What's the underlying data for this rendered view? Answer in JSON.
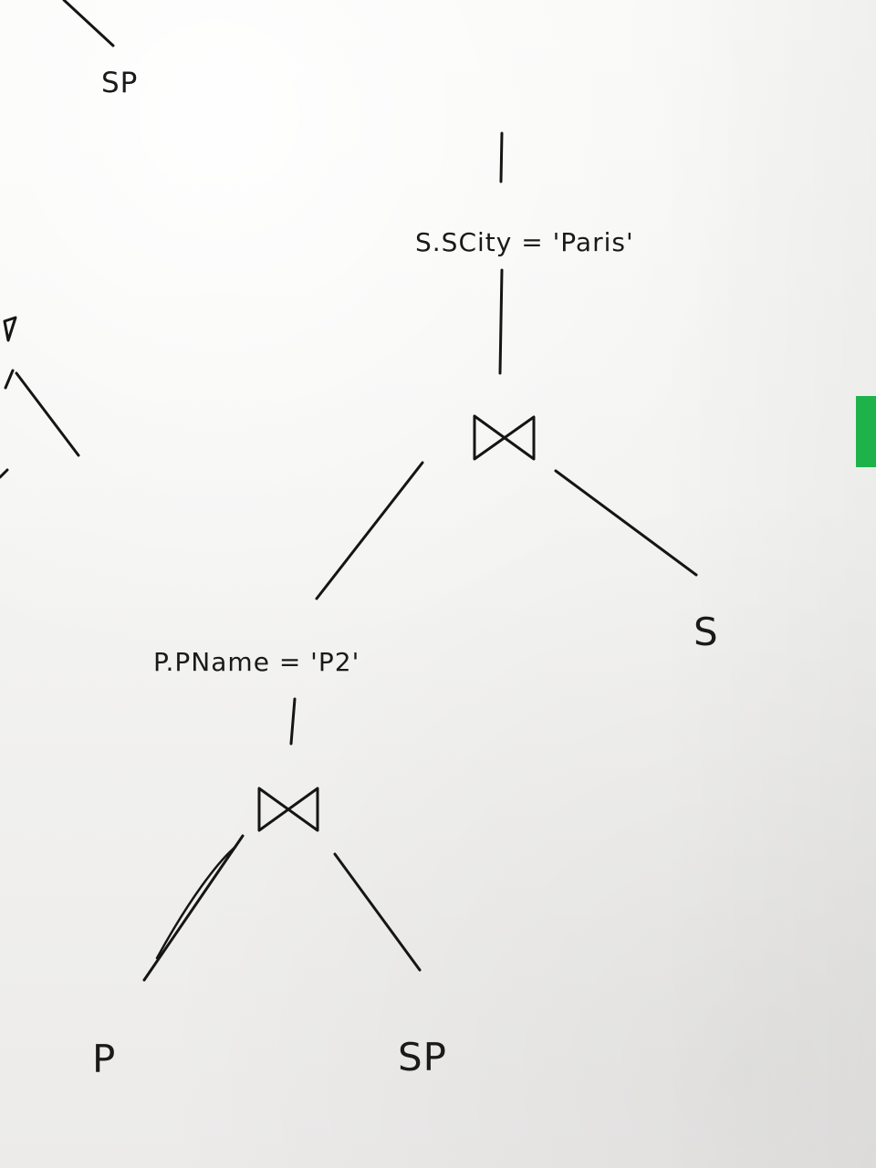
{
  "labels": {
    "top_sp": "SP",
    "top_select": "S.SCity = 'Paris'",
    "right_leaf": "S",
    "left_select": "P.PName = 'P2'",
    "bottom_left_leaf": "P",
    "bottom_right_leaf": "SP"
  },
  "symbols": {
    "join_top": "⋈",
    "join_bottom": "⋈"
  }
}
